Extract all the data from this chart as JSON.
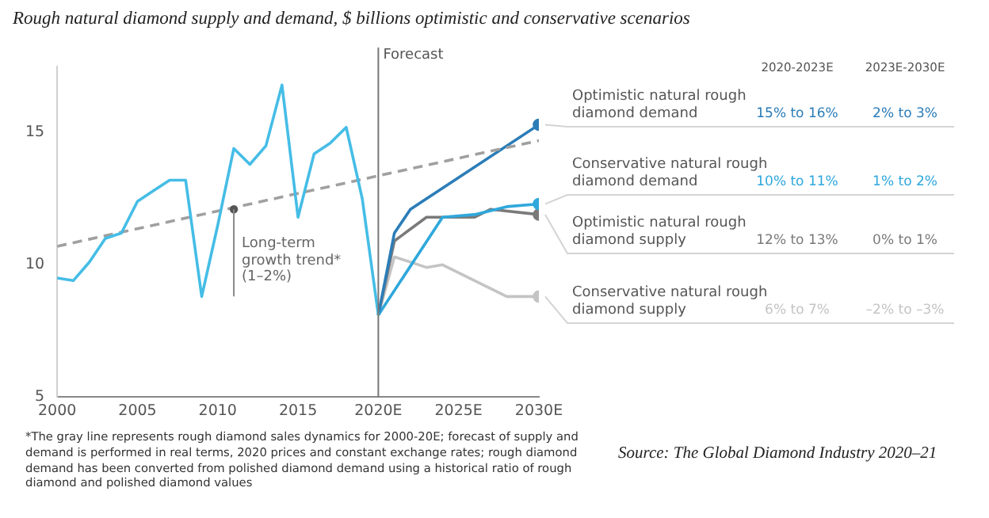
{
  "chart_data": {
    "type": "line",
    "title": "Rough natural diamond supply and demand, $ billions optimistic and conservative scenarios",
    "xlim": [
      2000,
      2030
    ],
    "xticks": [
      2000,
      2005,
      2010,
      2015,
      {
        "value": 2020,
        "label": "2020E"
      },
      {
        "value": 2025,
        "label": "2025E"
      },
      {
        "value": 2030,
        "label": "2030E"
      }
    ],
    "ylim": [
      5,
      17.5
    ],
    "yticks": [
      5,
      10,
      15
    ],
    "grid": false,
    "legend": false,
    "series": [
      {
        "color": "#45bde6",
        "marker": "none",
        "x": [
          2000,
          2001,
          2002,
          2003,
          2004,
          2005,
          2006,
          2007,
          2008,
          2009,
          2010,
          2011,
          2012,
          2013,
          2014,
          2015,
          2016,
          2017,
          2018,
          2019,
          2020
        ],
        "values": [
          9.5,
          9.4,
          10.1,
          11.0,
          11.2,
          12.4,
          12.8,
          13.2,
          13.2,
          8.8,
          11.5,
          14.4,
          13.8,
          14.5,
          16.8,
          11.8,
          14.2,
          14.6,
          15.2,
          12.5,
          8.1
        ]
      },
      {
        "color": "#a0a0a0",
        "marker": "none",
        "line_style": "dashed",
        "x": [
          2000,
          2030
        ],
        "values": [
          10.7,
          14.7
        ]
      },
      {
        "name": "Optimistic natural rough diamond demand",
        "color": "#2b7db8",
        "x": [
          2020,
          2021,
          2022,
          2030
        ],
        "values": [
          8.1,
          11.2,
          12.1,
          15.3
        ]
      },
      {
        "name": "Conservative natural rough diamond demand",
        "color": "#2fa8dc",
        "x": [
          2020,
          2024,
          2026,
          2028,
          2030
        ],
        "values": [
          8.1,
          11.8,
          11.9,
          12.2,
          12.3
        ]
      },
      {
        "name": "Optimistic natural rough diamond supply",
        "color": "#7a7a7a",
        "x": [
          2020,
          2021,
          2023,
          2024,
          2026,
          2027,
          2030
        ],
        "values": [
          8.1,
          10.9,
          11.8,
          11.8,
          11.8,
          12.1,
          11.9
        ]
      },
      {
        "name": "Conservative natural rough diamond supply",
        "color": "#c4c4c4",
        "x": [
          2020,
          2021,
          2023,
          2024,
          2026,
          2028,
          2030
        ],
        "values": [
          8.1,
          10.3,
          9.9,
          10.0,
          9.4,
          8.8,
          8.8
        ]
      }
    ],
    "ref_lines": [
      {
        "axis": "x",
        "value": 2020,
        "label": "Forecast",
        "color": "#777777"
      }
    ],
    "annotations": [
      {
        "text": "Long-term growth trend* (1–2%)",
        "x": 2011,
        "y": 12.1
      },
      "*The gray line represents rough diamond sales dynamics for 2000-20E; forecast of supply and demand is performed in real terms, 2020 prices and constant exchange rates; rough diamond demand has been converted from polished diamond demand using a historical ratio of rough diamond and polished diamond values",
      "Source: The Global Diamond Industry 2020–21",
      "2020-2023E",
      "2023E-2030E",
      "15% to 16%",
      "2% to 3%",
      "10% to 11%",
      "1% to 2%",
      "12% to 13%",
      "0% to 1%",
      "6% to 7%",
      "–2% to –3%"
    ]
  }
}
